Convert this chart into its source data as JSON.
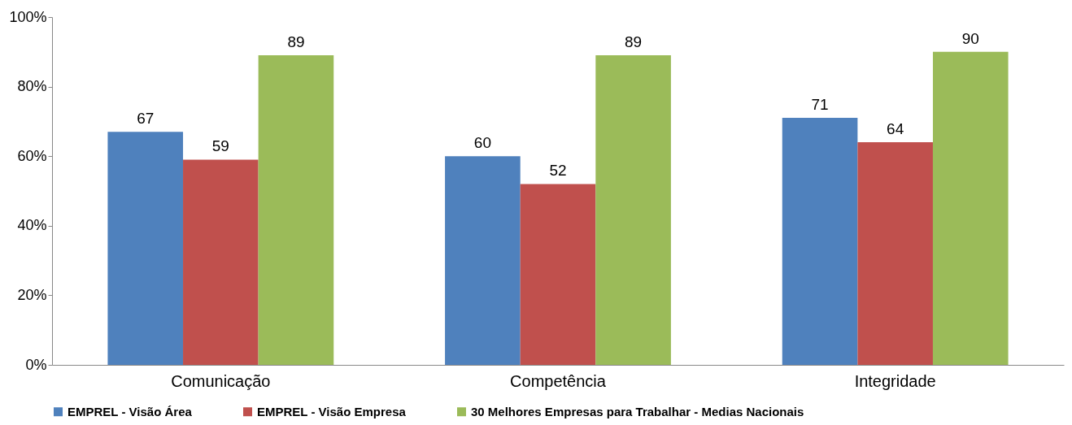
{
  "chart_data": {
    "type": "bar",
    "categories": [
      "Comunicação",
      "Competência",
      "Integridade"
    ],
    "series": [
      {
        "name": "EMPREL - Visão Área",
        "color": "#4f81bd",
        "values": [
          67,
          60,
          71
        ]
      },
      {
        "name": "EMPREL - Visão Empresa",
        "color": "#c0504d",
        "values": [
          59,
          52,
          64
        ]
      },
      {
        "name": "30 Melhores Empresas para Trabalhar - Medias Nacionais",
        "color": "#9bbb59",
        "values": [
          89,
          89,
          90
        ]
      }
    ],
    "ylim": [
      0,
      100
    ],
    "yticks": [
      {
        "value": 0,
        "label": "0%"
      },
      {
        "value": 20,
        "label": "20%"
      },
      {
        "value": 40,
        "label": "40%"
      },
      {
        "value": 60,
        "label": "60%"
      },
      {
        "value": 80,
        "label": "80%"
      },
      {
        "value": 100,
        "label": "100%"
      }
    ],
    "data_labels": true,
    "legend": "bottom",
    "grid": false
  }
}
